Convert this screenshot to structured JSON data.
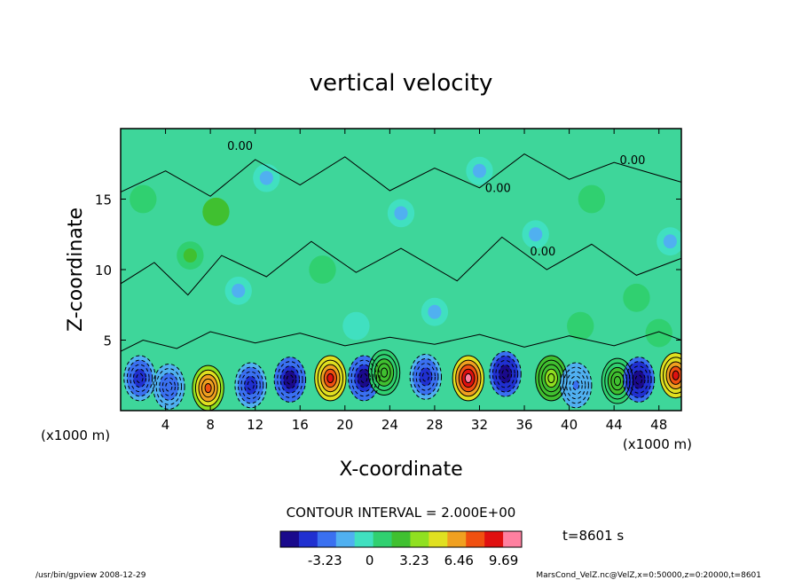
{
  "chart_data": {
    "type": "heatmap",
    "title": "vertical velocity",
    "xlabel": "X-coordinate",
    "ylabel": "Z-coordinate",
    "x_unit_left": "(x1000 m)",
    "x_unit_right": "(x1000 m)",
    "x_ticks": [
      "4",
      "8",
      "12",
      "16",
      "20",
      "24",
      "28",
      "32",
      "36",
      "40",
      "44",
      "48"
    ],
    "x_tick_values": [
      4,
      8,
      12,
      16,
      20,
      24,
      28,
      32,
      36,
      40,
      44,
      48
    ],
    "y_ticks": [
      "5",
      "10",
      "15"
    ],
    "y_tick_values": [
      5,
      10,
      15
    ],
    "xlim": [
      0,
      50
    ],
    "ylim": [
      0,
      20
    ],
    "contour_interval_text": "CONTOUR INTERVAL = 2.000E+00",
    "contour_zero_label": "0.00",
    "colorbar": {
      "tick_labels": [
        "-3.23",
        "0",
        "3.23",
        "6.46",
        "9.69"
      ],
      "tick_values": [
        -3.23,
        0,
        3.23,
        6.46,
        9.69
      ],
      "range": [
        -6.46,
        11.0
      ],
      "colors": [
        "#1a0a8c",
        "#2030d0",
        "#3a70f0",
        "#50b0f0",
        "#40e0c0",
        "#30d070",
        "#40c030",
        "#90e020",
        "#e0e020",
        "#f0a020",
        "#f05010",
        "#e01010",
        "#ff80a0"
      ]
    },
    "cells": [
      {
        "x": 1.7,
        "z": 2.3,
        "value": -4.5
      },
      {
        "x": 4.3,
        "z": 1.7,
        "value": -3.5
      },
      {
        "x": 7.8,
        "z": 1.6,
        "value": 8.0
      },
      {
        "x": 11.6,
        "z": 1.8,
        "value": -4.5
      },
      {
        "x": 15.1,
        "z": 2.2,
        "value": -6.0
      },
      {
        "x": 18.7,
        "z": 2.3,
        "value": 9.0
      },
      {
        "x": 21.7,
        "z": 2.3,
        "value": -6.0
      },
      {
        "x": 23.5,
        "z": 2.7,
        "value": 2.5
      },
      {
        "x": 27.2,
        "z": 2.4,
        "value": -5.0
      },
      {
        "x": 31.0,
        "z": 2.3,
        "value": 10.0
      },
      {
        "x": 34.3,
        "z": 2.6,
        "value": -6.3
      },
      {
        "x": 38.4,
        "z": 2.3,
        "value": 3.5
      },
      {
        "x": 40.6,
        "z": 1.8,
        "value": -2.5
      },
      {
        "x": 44.3,
        "z": 2.1,
        "value": 2.5
      },
      {
        "x": 46.2,
        "z": 2.2,
        "value": -6.3
      },
      {
        "x": 49.5,
        "z": 2.5,
        "value": 9.0
      },
      {
        "x": 8.5,
        "z": 14.1,
        "value": 2.5
      },
      {
        "x": 6.2,
        "z": 11.0,
        "value": 2.0
      },
      {
        "x": 2.0,
        "z": 15.0,
        "value": 1.5
      },
      {
        "x": 10.5,
        "z": 8.5,
        "value": -1.5
      },
      {
        "x": 13.0,
        "z": 16.5,
        "value": -1.2
      },
      {
        "x": 25.0,
        "z": 14.0,
        "value": -1.2
      },
      {
        "x": 32.0,
        "z": 17.0,
        "value": -1.5
      },
      {
        "x": 37.0,
        "z": 12.5,
        "value": -1.3
      },
      {
        "x": 42.0,
        "z": 15.0,
        "value": 1.5
      },
      {
        "x": 46.0,
        "z": 8.0,
        "value": 1.2
      },
      {
        "x": 49.0,
        "z": 12.0,
        "value": -1.2
      },
      {
        "x": 18.0,
        "z": 10.0,
        "value": 1.2
      },
      {
        "x": 28.0,
        "z": 7.0,
        "value": -1.2
      },
      {
        "x": 41.0,
        "z": 6.0,
        "value": 1.0
      },
      {
        "x": 48.0,
        "z": 5.5,
        "value": 1.5
      },
      {
        "x": 21.0,
        "z": 6.0,
        "value": -1.0
      }
    ],
    "time_label": "t=8601 s"
  },
  "footer": {
    "left": "/usr/bin/gpview   2008-12-29",
    "right": "MarsCond_VelZ.nc@VelZ,x=0:50000,z=0:20000,t=8601"
  }
}
